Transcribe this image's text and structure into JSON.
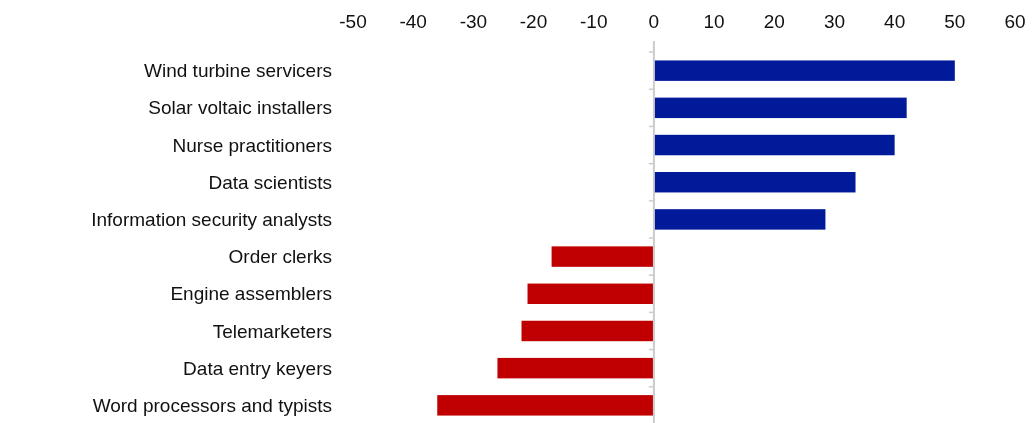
{
  "chart_data": {
    "type": "bar",
    "orientation": "horizontal",
    "categories": [
      "Wind turbine servicers",
      "Solar voltaic installers",
      "Nurse practitioners",
      "Data scientists",
      "Information security analysts",
      "Order clerks",
      "Engine assemblers",
      "Telemarketers",
      "Data entry keyers",
      "Word processors and typists"
    ],
    "values": [
      50,
      42,
      40,
      33.5,
      28.5,
      -17,
      -21,
      -22,
      -26,
      -36
    ],
    "colors": [
      "#001a9a",
      "#001a9a",
      "#001a9a",
      "#001a9a",
      "#001a9a",
      "#c00000",
      "#c00000",
      "#c00000",
      "#c00000",
      "#c00000"
    ],
    "xlim": [
      -50,
      60
    ],
    "xticks": [
      -50,
      -40,
      -30,
      -20,
      -10,
      0,
      10,
      20,
      30,
      40,
      50,
      60
    ]
  }
}
